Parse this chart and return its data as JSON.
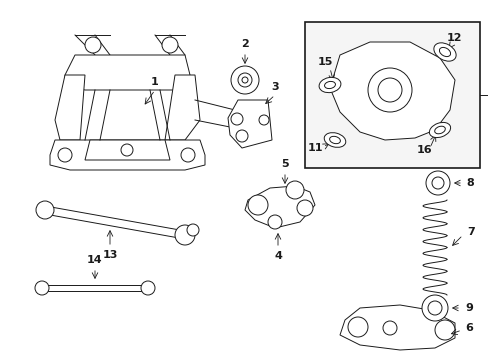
{
  "bg_color": "#ffffff",
  "line_color": "#1a1a1a",
  "fig_width": 4.89,
  "fig_height": 3.6,
  "dpi": 100,
  "font_size": 8,
  "font_size_small": 7
}
